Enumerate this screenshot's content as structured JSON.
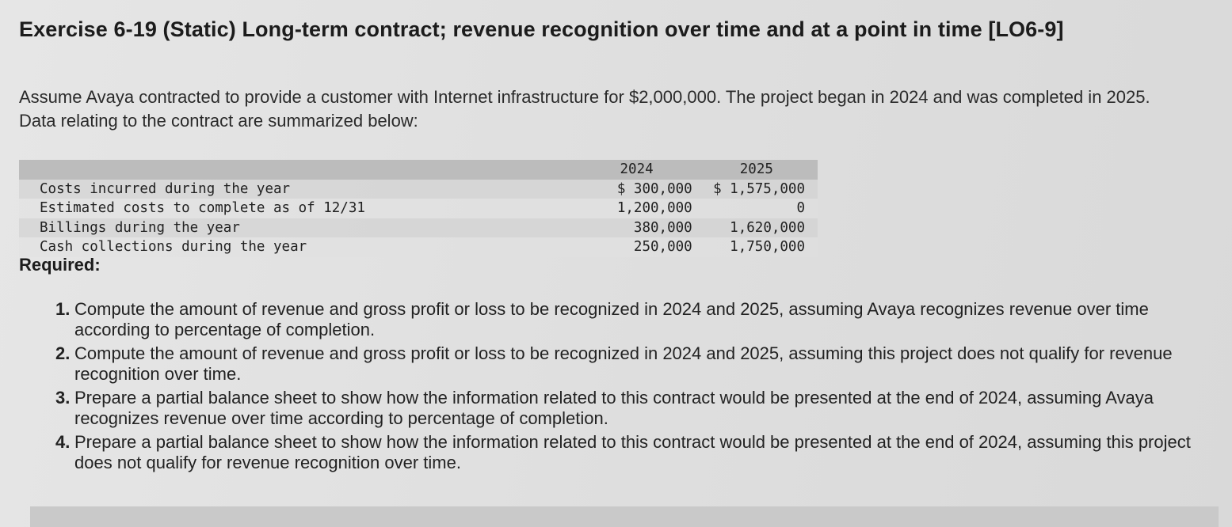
{
  "title": "Exercise 6-19 (Static) Long-term contract; revenue recognition over time and at a point in time [LO6-9]",
  "intro": "Assume Avaya contracted to provide a customer with Internet infrastructure for $2,000,000. The project began in 2024 and was completed in 2025. Data relating to the contract are summarized below:",
  "table": {
    "headers": [
      "",
      "2024",
      "2025"
    ],
    "rows": [
      {
        "label": "Costs incurred during the year",
        "y2024": "$ 300,000",
        "y2025": "$ 1,575,000"
      },
      {
        "label": "Estimated costs to complete as of 12/31",
        "y2024": "1,200,000",
        "y2025": "0"
      },
      {
        "label": "Billings during the year",
        "y2024": "380,000",
        "y2025": "1,620,000"
      },
      {
        "label": "Cash collections during the year",
        "y2024": "250,000",
        "y2025": "1,750,000"
      }
    ]
  },
  "required_label": "Required:",
  "questions": [
    {
      "num": "1.",
      "text": "Compute the amount of revenue and gross profit or loss to be recognized in 2024 and 2025, assuming Avaya recognizes revenue over time according to percentage of completion."
    },
    {
      "num": "2.",
      "text": "Compute the amount of revenue and gross profit or loss to be recognized in 2024 and 2025, assuming this project does not qualify for revenue recognition over time."
    },
    {
      "num": "3.",
      "text": "Prepare a partial balance sheet to show how the information related to this contract would be presented at the end of 2024, assuming Avaya recognizes revenue over time according to percentage of completion."
    },
    {
      "num": "4.",
      "text": "Prepare a partial balance sheet to show how the information related to this contract would be presented at the end of 2024, assuming this project does not qualify for revenue recognition over time."
    }
  ]
}
